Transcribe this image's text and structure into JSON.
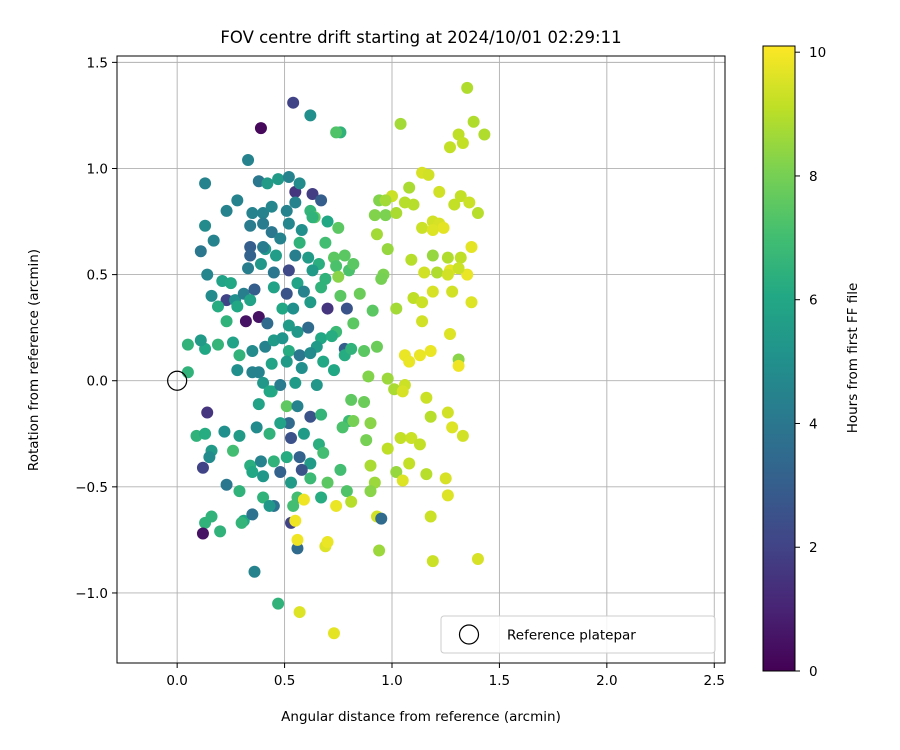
{
  "chart_data": {
    "type": "scatter",
    "title": "FOV centre drift starting at 2024/10/01 02:29:11",
    "xlabel": "Angular distance from reference (arcmin)",
    "ylabel": "Rotation from reference (arcmin)",
    "xlim": [
      -0.28,
      2.55
    ],
    "ylim": [
      -1.33,
      1.53
    ],
    "xticks": [
      0.0,
      0.5,
      1.0,
      1.5,
      2.0,
      2.5
    ],
    "xtick_labels": [
      "0.0",
      "0.5",
      "1.0",
      "1.5",
      "2.0",
      "2.5"
    ],
    "yticks": [
      -1.0,
      -0.5,
      0.0,
      0.5,
      1.0,
      1.5
    ],
    "ytick_labels": [
      "−1.0",
      "−0.5",
      "0.0",
      "0.5",
      "1.0",
      "1.5"
    ],
    "grid": true,
    "legend": {
      "position": "lower-right",
      "entries": [
        "Reference platepar"
      ]
    },
    "reference_point": {
      "x": 0.0,
      "y": 0.0,
      "label": "Reference platepar"
    },
    "colorbar": {
      "label": "Hours from first FF file",
      "min": 0,
      "max": 10.1,
      "ticks": [
        0,
        2,
        4,
        6,
        8,
        10
      ],
      "tick_labels": [
        "0",
        "2",
        "4",
        "6",
        "8",
        "10"
      ],
      "colormap": "viridis"
    },
    "points": [
      [
        0.39,
        1.19,
        0.2
      ],
      [
        0.54,
        1.31,
        2.0
      ],
      [
        0.62,
        1.25,
        5.0
      ],
      [
        0.76,
        1.17,
        6.5
      ],
      [
        0.74,
        1.17,
        7.3
      ],
      [
        1.04,
        1.21,
        8.7
      ],
      [
        1.35,
        1.38,
        8.9
      ],
      [
        0.33,
        1.04,
        4.5
      ],
      [
        0.13,
        0.93,
        4.5
      ],
      [
        0.38,
        0.94,
        4.0
      ],
      [
        0.42,
        0.93,
        5.5
      ],
      [
        0.47,
        0.95,
        5.5
      ],
      [
        0.52,
        0.96,
        4.5
      ],
      [
        0.55,
        0.89,
        1.5
      ],
      [
        0.57,
        0.93,
        4.8
      ],
      [
        0.63,
        0.88,
        1.8
      ],
      [
        0.67,
        0.85,
        3.0
      ],
      [
        0.28,
        0.85,
        4.5
      ],
      [
        0.23,
        0.8,
        4.5
      ],
      [
        0.35,
        0.79,
        4.5
      ],
      [
        0.4,
        0.79,
        4.5
      ],
      [
        0.44,
        0.82,
        4.6
      ],
      [
        0.51,
        0.8,
        4.5
      ],
      [
        0.55,
        0.84,
        4.5
      ],
      [
        0.62,
        0.8,
        6.6
      ],
      [
        0.64,
        0.77,
        7.5
      ],
      [
        0.7,
        0.75,
        6.0
      ],
      [
        0.13,
        0.73,
        4.8
      ],
      [
        0.34,
        0.73,
        4.2
      ],
      [
        0.4,
        0.74,
        4.2
      ],
      [
        0.44,
        0.7,
        4.0
      ],
      [
        0.52,
        0.74,
        4.6
      ],
      [
        0.58,
        0.71,
        5.0
      ],
      [
        0.63,
        0.77,
        6.5
      ],
      [
        0.75,
        0.72,
        7.5
      ],
      [
        0.11,
        0.61,
        4.0
      ],
      [
        0.17,
        0.66,
        4.5
      ],
      [
        0.34,
        0.63,
        3.0
      ],
      [
        0.41,
        0.62,
        5.3
      ],
      [
        0.48,
        0.67,
        4.5
      ],
      [
        0.57,
        0.65,
        6.5
      ],
      [
        0.69,
        0.65,
        7.0
      ],
      [
        0.34,
        0.59,
        3.2
      ],
      [
        0.4,
        0.63,
        4.2
      ],
      [
        0.46,
        0.59,
        5.6
      ],
      [
        0.55,
        0.59,
        4.3
      ],
      [
        0.61,
        0.58,
        5.5
      ],
      [
        0.66,
        0.55,
        6.3
      ],
      [
        0.73,
        0.58,
        7.5
      ],
      [
        0.78,
        0.59,
        7.5
      ],
      [
        0.14,
        0.5,
        4.6
      ],
      [
        0.21,
        0.47,
        5.8
      ],
      [
        0.25,
        0.46,
        6.0
      ],
      [
        0.33,
        0.53,
        4.3
      ],
      [
        0.39,
        0.55,
        5.3
      ],
      [
        0.45,
        0.51,
        4.0
      ],
      [
        0.52,
        0.52,
        2.2
      ],
      [
        0.56,
        0.46,
        5.8
      ],
      [
        0.63,
        0.52,
        5.5
      ],
      [
        0.69,
        0.48,
        6.5
      ],
      [
        0.74,
        0.54,
        7.2
      ],
      [
        0.8,
        0.52,
        7.2
      ],
      [
        0.82,
        0.55,
        7.5
      ],
      [
        0.16,
        0.4,
        4.8
      ],
      [
        0.23,
        0.38,
        2.0
      ],
      [
        0.27,
        0.38,
        5.0
      ],
      [
        0.31,
        0.41,
        4.3
      ],
      [
        0.36,
        0.43,
        3.0
      ],
      [
        0.45,
        0.44,
        5.8
      ],
      [
        0.51,
        0.41,
        2.6
      ],
      [
        0.59,
        0.42,
        4.5
      ],
      [
        0.67,
        0.44,
        6.5
      ],
      [
        0.76,
        0.4,
        7.5
      ],
      [
        0.85,
        0.41,
        7.8
      ],
      [
        0.19,
        0.35,
        6.2
      ],
      [
        0.28,
        0.35,
        6.0
      ],
      [
        0.34,
        0.38,
        5.8
      ],
      [
        0.49,
        0.34,
        6.0
      ],
      [
        0.54,
        0.34,
        5.0
      ],
      [
        0.62,
        0.37,
        5.5
      ],
      [
        0.7,
        0.34,
        1.5
      ],
      [
        0.79,
        0.34,
        2.6
      ],
      [
        0.23,
        0.28,
        6.5
      ],
      [
        0.32,
        0.28,
        0.5
      ],
      [
        0.38,
        0.3,
        0.5
      ],
      [
        0.42,
        0.27,
        3.5
      ],
      [
        0.52,
        0.26,
        5.5
      ],
      [
        0.56,
        0.23,
        5.3
      ],
      [
        0.61,
        0.25,
        3.5
      ],
      [
        0.67,
        0.2,
        6.0
      ],
      [
        0.74,
        0.23,
        6.8
      ],
      [
        0.82,
        0.27,
        7.5
      ],
      [
        0.13,
        0.15,
        6.0
      ],
      [
        0.19,
        0.17,
        6.6
      ],
      [
        0.26,
        0.18,
        5.8
      ],
      [
        0.35,
        0.14,
        4.8
      ],
      [
        0.41,
        0.16,
        4.5
      ],
      [
        0.45,
        0.19,
        5.5
      ],
      [
        0.49,
        0.2,
        5.2
      ],
      [
        0.52,
        0.14,
        6.2
      ],
      [
        0.57,
        0.12,
        4.0
      ],
      [
        0.65,
        0.16,
        5.5
      ],
      [
        0.72,
        0.21,
        6.2
      ],
      [
        0.78,
        0.15,
        3.0
      ],
      [
        0.87,
        0.14,
        7.5
      ],
      [
        0.05,
        0.17,
        6.5
      ],
      [
        0.11,
        0.19,
        5.5
      ],
      [
        0.29,
        0.12,
        6.5
      ],
      [
        0.38,
        0.04,
        4.5
      ],
      [
        0.44,
        0.08,
        5.8
      ],
      [
        0.51,
        0.09,
        5.5
      ],
      [
        0.58,
        0.06,
        5.0
      ],
      [
        0.62,
        0.13,
        4.8
      ],
      [
        0.68,
        0.09,
        6.0
      ],
      [
        0.78,
        0.12,
        6.2
      ],
      [
        0.81,
        0.15,
        6.5
      ],
      [
        0.05,
        0.04,
        6.5
      ],
      [
        0.28,
        0.05,
        5.0
      ],
      [
        0.35,
        0.04,
        4.5
      ],
      [
        0.4,
        -0.01,
        5.3
      ],
      [
        0.44,
        -0.05,
        6.2
      ],
      [
        0.48,
        -0.02,
        4.2
      ],
      [
        0.55,
        -0.01,
        5.5
      ],
      [
        0.65,
        -0.02,
        5.3
      ],
      [
        0.73,
        0.05,
        6.0
      ],
      [
        0.38,
        -0.11,
        5.8
      ],
      [
        0.43,
        -0.05,
        6.0
      ],
      [
        0.51,
        -0.12,
        7.6
      ],
      [
        0.52,
        -0.2,
        3.5
      ],
      [
        0.56,
        -0.12,
        4.5
      ],
      [
        0.62,
        -0.17,
        2.6
      ],
      [
        0.67,
        -0.16,
        6.6
      ],
      [
        0.8,
        -0.19,
        6.8
      ],
      [
        0.14,
        -0.15,
        1.5
      ],
      [
        0.22,
        -0.24,
        5.0
      ],
      [
        0.29,
        -0.26,
        5.5
      ],
      [
        0.37,
        -0.22,
        4.8
      ],
      [
        0.43,
        -0.25,
        6.5
      ],
      [
        0.48,
        -0.2,
        5.8
      ],
      [
        0.53,
        -0.27,
        2.5
      ],
      [
        0.59,
        -0.25,
        5.5
      ],
      [
        0.66,
        -0.3,
        6.3
      ],
      [
        0.77,
        -0.22,
        7.2
      ],
      [
        0.09,
        -0.26,
        6.5
      ],
      [
        0.13,
        -0.25,
        6.2
      ],
      [
        0.16,
        -0.33,
        5.5
      ],
      [
        0.26,
        -0.33,
        7.0
      ],
      [
        0.34,
        -0.4,
        6.3
      ],
      [
        0.39,
        -0.38,
        4.5
      ],
      [
        0.45,
        -0.38,
        6.5
      ],
      [
        0.51,
        -0.36,
        6.2
      ],
      [
        0.57,
        -0.36,
        3.2
      ],
      [
        0.62,
        -0.39,
        5.5
      ],
      [
        0.68,
        -0.34,
        7.0
      ],
      [
        0.76,
        -0.42,
        7.0
      ],
      [
        0.12,
        -0.41,
        2.0
      ],
      [
        0.15,
        -0.36,
        4.8
      ],
      [
        0.23,
        -0.49,
        4.0
      ],
      [
        0.29,
        -0.52,
        6.5
      ],
      [
        0.35,
        -0.43,
        6.0
      ],
      [
        0.4,
        -0.45,
        5.3
      ],
      [
        0.48,
        -0.43,
        3.2
      ],
      [
        0.53,
        -0.48,
        5.5
      ],
      [
        0.58,
        -0.42,
        2.6
      ],
      [
        0.62,
        -0.46,
        6.8
      ],
      [
        0.7,
        -0.48,
        7.5
      ],
      [
        0.79,
        -0.52,
        7.3
      ],
      [
        0.4,
        -0.55,
        6.5
      ],
      [
        0.45,
        -0.59,
        3.8
      ],
      [
        0.56,
        -0.55,
        7.0
      ],
      [
        0.67,
        -0.55,
        6.2
      ],
      [
        0.16,
        -0.64,
        6.5
      ],
      [
        0.2,
        -0.71,
        6.5
      ],
      [
        0.31,
        -0.66,
        6.0
      ],
      [
        0.35,
        -0.63,
        3.8
      ],
      [
        0.43,
        -0.59,
        5.3
      ],
      [
        0.54,
        -0.59,
        7.0
      ],
      [
        0.13,
        -0.67,
        6.5
      ],
      [
        0.12,
        -0.72,
        0.5
      ],
      [
        0.3,
        -0.67,
        6.6
      ],
      [
        0.56,
        -0.79,
        3.5
      ],
      [
        0.53,
        -0.67,
        2.0
      ],
      [
        0.36,
        -0.9,
        4.5
      ],
      [
        0.47,
        -1.05,
        6.5
      ],
      [
        0.57,
        -1.09,
        9.6
      ],
      [
        0.73,
        -1.19,
        9.7
      ],
      [
        0.92,
        0.78,
        8.2
      ],
      [
        0.97,
        0.78,
        8.1
      ],
      [
        1.0,
        0.87,
        9.3
      ],
      [
        1.02,
        0.79,
        8.8
      ],
      [
        1.06,
        0.84,
        9.0
      ],
      [
        1.08,
        0.91,
        8.8
      ],
      [
        1.1,
        0.83,
        9.0
      ],
      [
        1.14,
        0.98,
        9.5
      ],
      [
        1.17,
        0.97,
        9.4
      ],
      [
        1.22,
        0.89,
        9.4
      ],
      [
        1.27,
        1.1,
        9.2
      ],
      [
        1.31,
        1.16,
        9.1
      ],
      [
        1.33,
        1.12,
        9.2
      ],
      [
        1.38,
        1.22,
        8.9
      ],
      [
        1.43,
        1.16,
        8.9
      ],
      [
        1.14,
        0.72,
        9.3
      ],
      [
        1.19,
        0.75,
        9.4
      ],
      [
        1.22,
        0.74,
        9.5
      ],
      [
        1.24,
        0.72,
        9.7
      ],
      [
        1.29,
        0.83,
        9.2
      ],
      [
        1.32,
        0.87,
        9.2
      ],
      [
        1.36,
        0.84,
        9.3
      ],
      [
        1.4,
        0.79,
        9.0
      ],
      [
        1.37,
        0.63,
        9.7
      ],
      [
        0.93,
        0.69,
        8.7
      ],
      [
        0.98,
        0.62,
        8.5
      ],
      [
        1.09,
        0.57,
        9.0
      ],
      [
        1.19,
        0.59,
        8.5
      ],
      [
        1.26,
        0.58,
        8.9
      ],
      [
        1.32,
        0.58,
        9.1
      ],
      [
        1.27,
        0.52,
        9.7
      ],
      [
        0.96,
        0.5,
        8.1
      ],
      [
        0.95,
        0.48,
        8.0
      ],
      [
        1.15,
        0.51,
        9.4
      ],
      [
        1.21,
        0.51,
        8.9
      ],
      [
        1.26,
        0.5,
        9.4
      ],
      [
        1.35,
        0.5,
        9.8
      ],
      [
        1.31,
        0.53,
        9.3
      ],
      [
        0.91,
        0.33,
        7.5
      ],
      [
        1.02,
        0.34,
        8.7
      ],
      [
        1.1,
        0.39,
        9.1
      ],
      [
        1.14,
        0.37,
        9.3
      ],
      [
        1.19,
        0.42,
        9.5
      ],
      [
        1.28,
        0.42,
        9.4
      ],
      [
        1.37,
        0.37,
        9.6
      ],
      [
        1.14,
        0.28,
        9.4
      ],
      [
        1.27,
        0.22,
        9.6
      ],
      [
        1.06,
        0.12,
        9.8
      ],
      [
        1.08,
        0.09,
        9.8
      ],
      [
        1.13,
        0.12,
        9.8
      ],
      [
        1.18,
        0.14,
        9.8
      ],
      [
        1.31,
        0.1,
        8.3
      ],
      [
        1.31,
        0.07,
        9.9
      ],
      [
        0.93,
        0.16,
        7.8
      ],
      [
        0.89,
        0.02,
        8.2
      ],
      [
        0.98,
        0.01,
        8.6
      ],
      [
        1.01,
        -0.04,
        8.8
      ],
      [
        1.06,
        -0.02,
        9.3
      ],
      [
        0.87,
        -0.1,
        7.8
      ],
      [
        0.81,
        -0.09,
        7.6
      ],
      [
        0.82,
        -0.19,
        8.0
      ],
      [
        0.9,
        -0.2,
        8.3
      ],
      [
        1.05,
        -0.05,
        9.5
      ],
      [
        1.16,
        -0.08,
        9.3
      ],
      [
        1.18,
        -0.17,
        9.0
      ],
      [
        1.26,
        -0.15,
        9.4
      ],
      [
        0.88,
        -0.28,
        8.0
      ],
      [
        0.98,
        -0.32,
        9.1
      ],
      [
        1.04,
        -0.27,
        9.2
      ],
      [
        1.09,
        -0.27,
        9.3
      ],
      [
        1.13,
        -0.3,
        9.2
      ],
      [
        1.28,
        -0.22,
        9.6
      ],
      [
        1.33,
        -0.26,
        9.4
      ],
      [
        1.02,
        -0.43,
        8.5
      ],
      [
        1.08,
        -0.39,
        9.2
      ],
      [
        1.16,
        -0.44,
        9.0
      ],
      [
        1.25,
        -0.46,
        9.5
      ],
      [
        0.9,
        -0.4,
        8.8
      ],
      [
        0.92,
        -0.48,
        8.6
      ],
      [
        1.05,
        -0.47,
        9.6
      ],
      [
        0.81,
        -0.57,
        9.0
      ],
      [
        0.9,
        -0.52,
        8.3
      ],
      [
        0.93,
        -0.64,
        9.4
      ],
      [
        0.95,
        -0.65,
        3.5
      ],
      [
        1.26,
        -0.54,
        9.6
      ],
      [
        1.18,
        -0.64,
        9.3
      ],
      [
        0.94,
        -0.8,
        8.6
      ],
      [
        1.19,
        -0.85,
        9.3
      ],
      [
        1.4,
        -0.84,
        9.5
      ],
      [
        0.56,
        -0.75,
        9.9
      ],
      [
        0.69,
        -0.78,
        9.6
      ],
      [
        0.7,
        -0.76,
        9.8
      ],
      [
        0.59,
        -0.56,
        9.9
      ],
      [
        0.74,
        -0.59,
        9.8
      ],
      [
        0.55,
        -0.66,
        9.9
      ],
      [
        0.75,
        0.49,
        8.3
      ],
      [
        0.94,
        0.85,
        8.2
      ],
      [
        1.19,
        0.71,
        9.6
      ],
      [
        0.97,
        0.85,
        8.7
      ]
    ]
  }
}
